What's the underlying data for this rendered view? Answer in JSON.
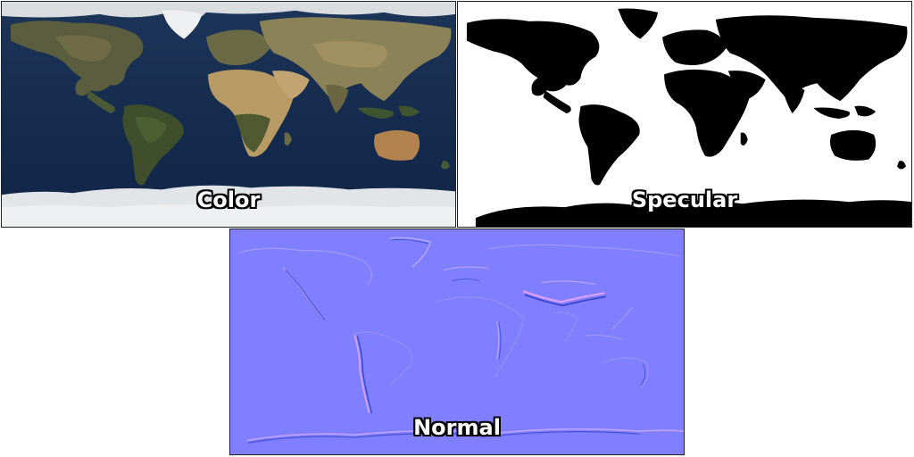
{
  "panels": {
    "color": {
      "label": "Color",
      "colors": {
        "ocean": "#142a4f",
        "land": "#6b6a4a",
        "desert": "#b79a66",
        "forest": "#3d4a2e",
        "ice": "#e6e9ec"
      }
    },
    "specular": {
      "label": "Specular",
      "colors": {
        "water": "#ffffff",
        "land": "#000000"
      }
    },
    "normal": {
      "label": "Normal",
      "colors": {
        "base": "#7f7fff",
        "ridge_light": "#b7a9ff",
        "ridge_dark": "#4c54d9"
      }
    }
  }
}
